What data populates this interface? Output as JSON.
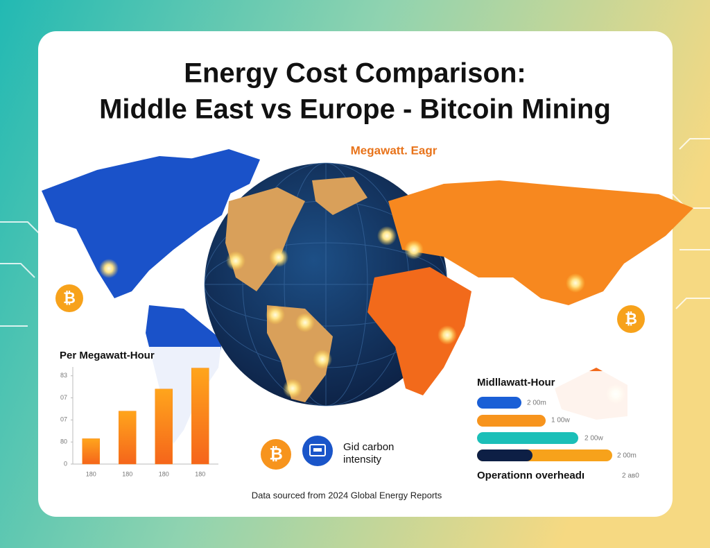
{
  "title": [
    "Energy Cost Comparison:",
    "Middle East vs Europe - Bitcoin Mining"
  ],
  "map_label": "Megawatt. Eagr",
  "chart_data": {
    "type": "bar",
    "title": "Per Megawatt-Hour",
    "categories": [
      "180",
      "180",
      "180",
      "180"
    ],
    "values": [
      1.15,
      2.4,
      3.4,
      4.35
    ],
    "color": "#f98a16",
    "ylim": [
      0,
      4.4
    ],
    "yticks": [
      0,
      {
        "value": 1,
        "label": "80"
      },
      {
        "value": 2,
        "label": "07"
      },
      {
        "value": 3,
        "label": "07"
      },
      {
        "value": 4,
        "label": "83"
      }
    ]
  },
  "right_panel": {
    "title": "Midllawatt-Hour",
    "bar_labels": [
      "2 00m",
      "1 00w",
      "2 00w",
      "2 00m"
    ],
    "footer": "Operationn overheadı",
    "footer_value": "2 ав0"
  },
  "legend": [
    "Gid carbon",
    "intensity"
  ],
  "source": "Data sourced from 2024 Global Energy Reports"
}
